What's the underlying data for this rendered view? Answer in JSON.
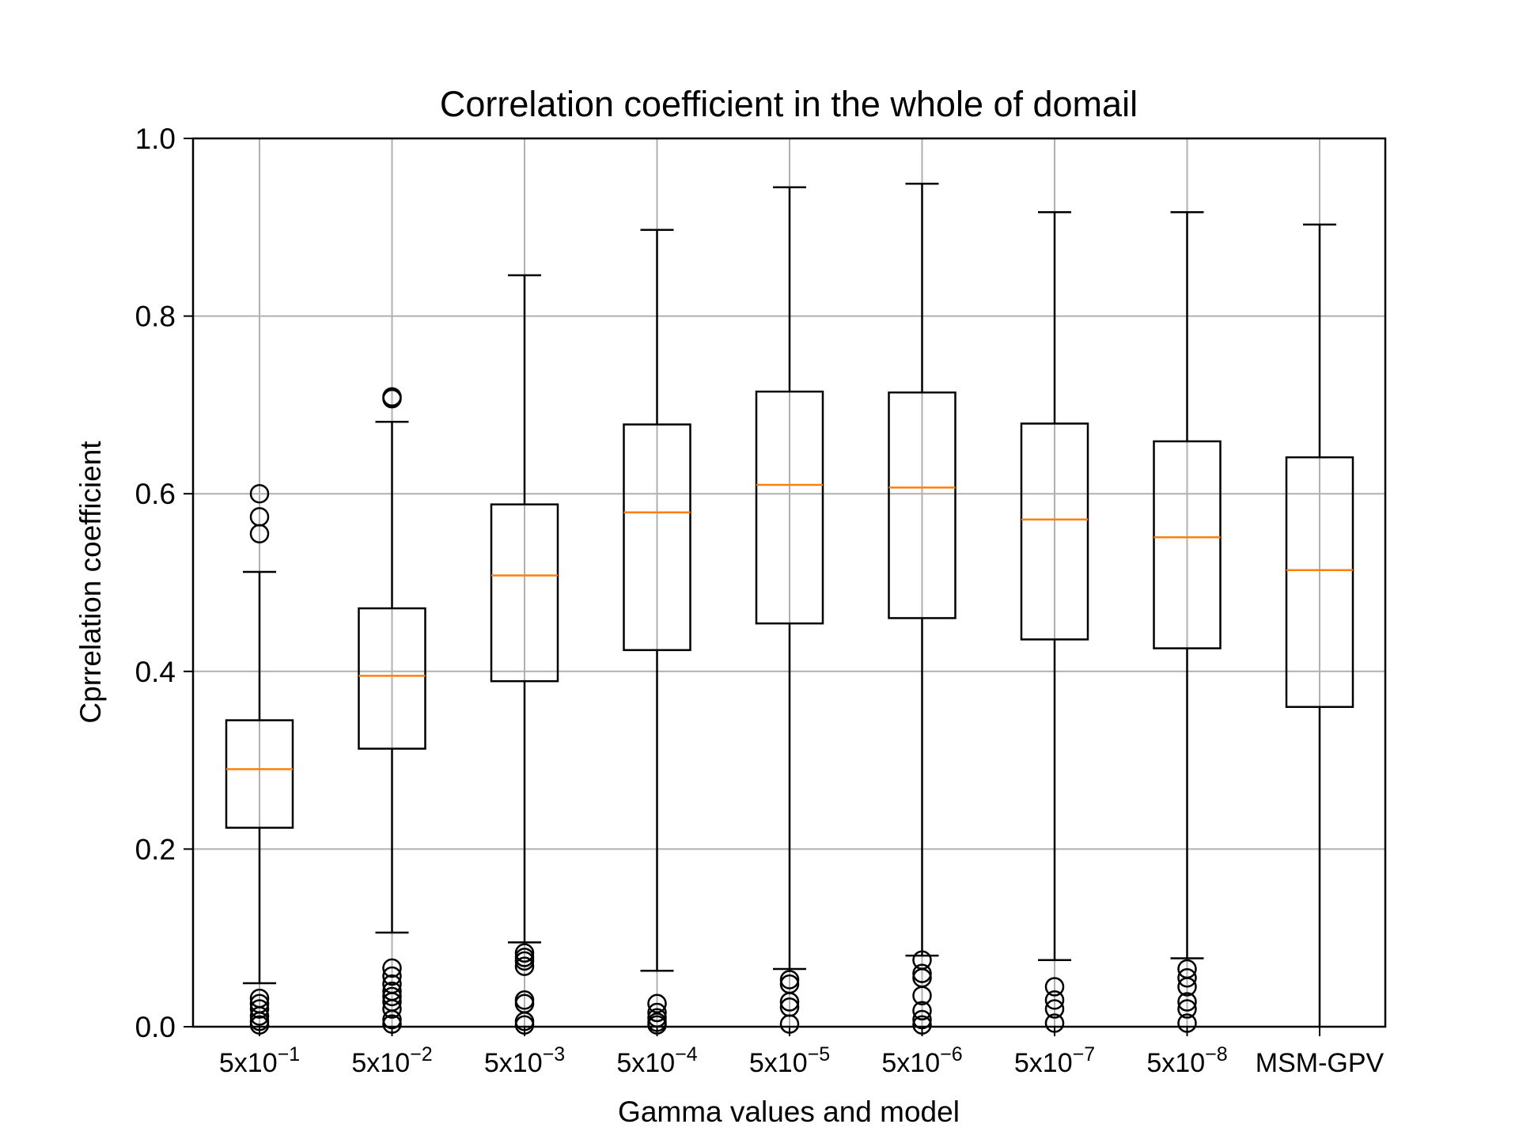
{
  "chart_data": {
    "type": "boxplot",
    "title": "Correlation coefficient in the whole of domail",
    "xlabel": "Gamma values and model",
    "ylabel": "Cprrelation coefficient",
    "ylim": [
      0.0,
      1.0
    ],
    "yticks": [
      "0.0",
      "0.2",
      "0.4",
      "0.6",
      "0.8",
      "1.0"
    ],
    "grid": true,
    "colors": {
      "box": "#000000",
      "median": "#ff7f0e",
      "grid": "#b0b0b0",
      "outlier": "#000000"
    },
    "categories": [
      {
        "base": "5x10",
        "exp": "−1"
      },
      {
        "base": "5x10",
        "exp": "−2"
      },
      {
        "base": "5x10",
        "exp": "−3"
      },
      {
        "base": "5x10",
        "exp": "−4"
      },
      {
        "base": "5x10",
        "exp": "−5"
      },
      {
        "base": "5x10",
        "exp": "−6"
      },
      {
        "base": "5x10",
        "exp": "−7"
      },
      {
        "base": "5x10",
        "exp": "−8"
      },
      {
        "base": "MSM-GPV",
        "exp": ""
      }
    ],
    "boxes": [
      {
        "whislo": 0.049,
        "q1": 0.224,
        "med": 0.29,
        "q3": 0.345,
        "whishi": 0.512,
        "fliers": [
          0.6,
          0.574,
          0.555,
          0.032,
          0.026,
          0.02,
          0.012,
          0.006,
          0.002
        ]
      },
      {
        "whislo": 0.106,
        "q1": 0.313,
        "med": 0.395,
        "q3": 0.471,
        "whishi": 0.681,
        "fliers": [
          0.709,
          0.707,
          0.066,
          0.057,
          0.048,
          0.04,
          0.034,
          0.028,
          0.02,
          0.008,
          0.003
        ]
      },
      {
        "whislo": 0.095,
        "q1": 0.389,
        "med": 0.508,
        "q3": 0.588,
        "whishi": 0.846,
        "fliers": [
          0.083,
          0.078,
          0.074,
          0.068,
          0.03,
          0.026,
          0.006,
          0.002
        ]
      },
      {
        "whislo": 0.063,
        "q1": 0.424,
        "med": 0.579,
        "q3": 0.678,
        "whishi": 0.897,
        "fliers": [
          0.026,
          0.016,
          0.01,
          0.005,
          0.002
        ]
      },
      {
        "whislo": 0.065,
        "q1": 0.454,
        "med": 0.61,
        "q3": 0.715,
        "whishi": 0.945,
        "fliers": [
          0.053,
          0.048,
          0.028,
          0.022,
          0.003
        ]
      },
      {
        "whislo": 0.08,
        "q1": 0.46,
        "med": 0.607,
        "q3": 0.714,
        "whishi": 0.949,
        "fliers": [
          0.075,
          0.06,
          0.055,
          0.035,
          0.018,
          0.008,
          0.002
        ]
      },
      {
        "whislo": 0.075,
        "q1": 0.436,
        "med": 0.571,
        "q3": 0.679,
        "whishi": 0.917,
        "fliers": [
          0.045,
          0.03,
          0.02,
          0.004
        ]
      },
      {
        "whislo": 0.077,
        "q1": 0.426,
        "med": 0.551,
        "q3": 0.659,
        "whishi": 0.917,
        "fliers": [
          0.065,
          0.055,
          0.045,
          0.028,
          0.02,
          0.004
        ]
      },
      {
        "whislo": 0.0,
        "q1": 0.36,
        "med": 0.514,
        "q3": 0.641,
        "whishi": 0.903,
        "fliers": []
      }
    ]
  }
}
